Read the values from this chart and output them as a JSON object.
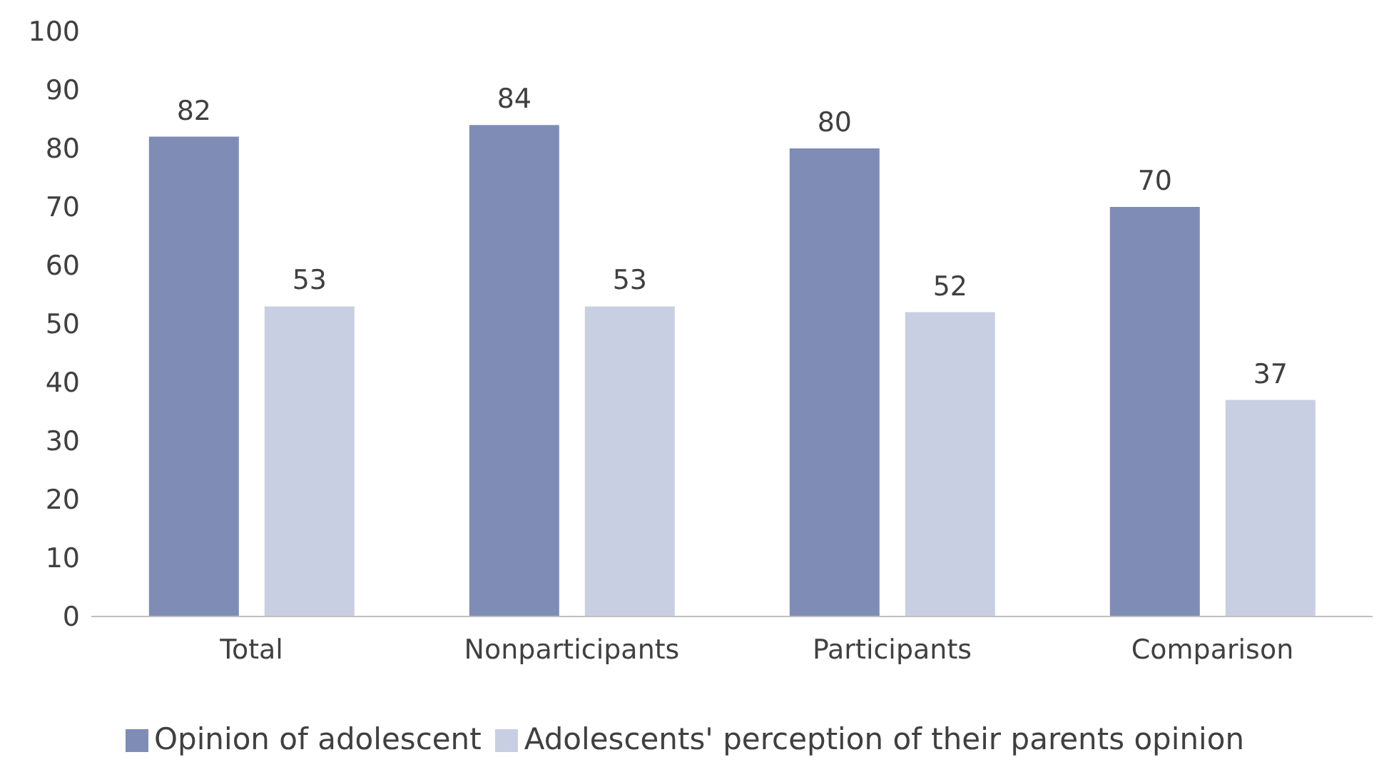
{
  "chart_data": {
    "type": "bar",
    "categories": [
      "Total",
      "Nonparticipants",
      "Participants",
      "Comparison"
    ],
    "series": [
      {
        "name": "Opinion of adolescent",
        "color": "#7f8db6",
        "values": [
          82,
          84,
          80,
          70
        ]
      },
      {
        "name": "Adolescents' perception of their parents opinion",
        "color": "#c9cfe2",
        "values": [
          53,
          53,
          52,
          37
        ]
      }
    ],
    "ylim": [
      0,
      100
    ],
    "yticks": [
      0,
      10,
      20,
      30,
      40,
      50,
      60,
      70,
      80,
      90,
      100
    ],
    "grid": false,
    "data_labels": true,
    "legend": "bottom"
  }
}
